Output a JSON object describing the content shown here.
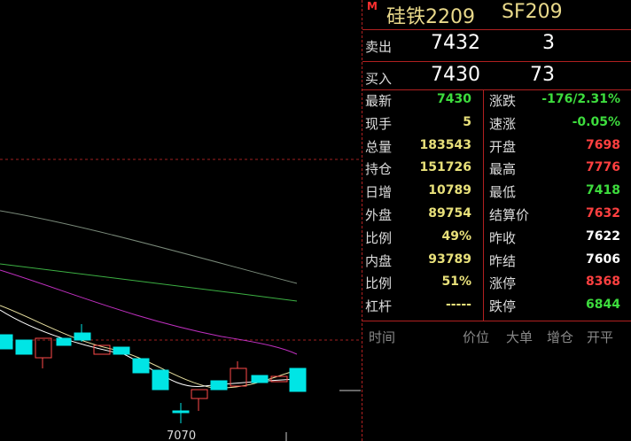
{
  "header": {
    "marker": "M",
    "name": "硅铁2209",
    "code": "SF209"
  },
  "quote": {
    "sell": {
      "label": "卖出",
      "price": "7432",
      "volume": "3"
    },
    "buy": {
      "label": "买入",
      "price": "7430",
      "volume": "73"
    }
  },
  "stats": [
    [
      {
        "label": "最新",
        "value": "7430",
        "color": "#3ddc3d"
      },
      {
        "label": "涨跌",
        "value": "-176/2.31%",
        "color": "#3ddc3d"
      }
    ],
    [
      {
        "label": "现手",
        "value": "5",
        "color": "#e8e07a"
      },
      {
        "label": "速涨",
        "value": "-0.05%",
        "color": "#3ddc3d"
      }
    ],
    [
      {
        "label": "总量",
        "value": "183543",
        "color": "#e8e07a"
      },
      {
        "label": "开盘",
        "value": "7698",
        "color": "#ff4040"
      }
    ],
    [
      {
        "label": "持仓",
        "value": "151726",
        "color": "#e8e07a"
      },
      {
        "label": "最高",
        "value": "7776",
        "color": "#ff4040"
      }
    ],
    [
      {
        "label": "日增",
        "value": "10789",
        "color": "#e8e07a"
      },
      {
        "label": "最低",
        "value": "7418",
        "color": "#3ddc3d"
      }
    ],
    [
      {
        "label": "外盘",
        "value": "89754",
        "color": "#e8e07a"
      },
      {
        "label": "结算价",
        "value": "7632",
        "color": "#ff4040"
      }
    ],
    [
      {
        "label": "比例",
        "value": "49%",
        "color": "#e8e07a"
      },
      {
        "label": "昨收",
        "value": "7622",
        "color": "#ffffff"
      }
    ],
    [
      {
        "label": "内盘",
        "value": "93789",
        "color": "#e8e07a"
      },
      {
        "label": "昨结",
        "value": "7606",
        "color": "#ffffff"
      }
    ],
    [
      {
        "label": "比例",
        "value": "51%",
        "color": "#e8e07a"
      },
      {
        "label": "涨停",
        "value": "8368",
        "color": "#ff4040"
      }
    ],
    [
      {
        "label": "杠杆",
        "value": "-----",
        "color": "#e8e07a"
      },
      {
        "label": "跌停",
        "value": "6844",
        "color": "#3ddc3d"
      }
    ]
  ],
  "trades_header": [
    "时间",
    "价位",
    "大单",
    "增仓",
    "开平"
  ],
  "chart": {
    "price_label": "7070"
  }
}
